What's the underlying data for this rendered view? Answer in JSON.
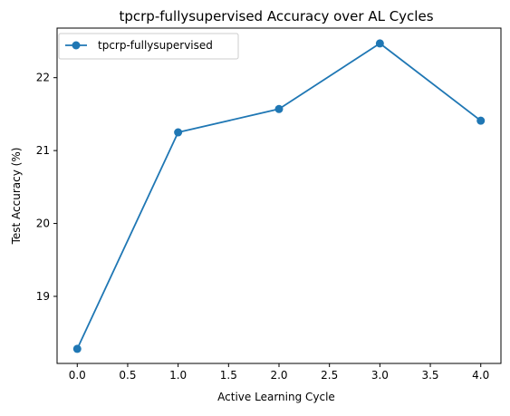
{
  "chart_data": {
    "type": "line",
    "title": "tpcrp-fullysupervised Accuracy over AL Cycles",
    "xlabel": "Active Learning Cycle",
    "ylabel": "Test Accuracy (%)",
    "x": [
      0,
      1,
      2,
      3,
      4
    ],
    "series": [
      {
        "name": "tpcrp-fullysupervised",
        "values": [
          18.28,
          21.25,
          21.57,
          22.47,
          21.41
        ],
        "color": "#1f77b4",
        "marker": "circle"
      }
    ],
    "xlim": [
      -0.2,
      4.2
    ],
    "ylim": [
      18.08,
      22.68
    ],
    "xticks": [
      0.0,
      0.5,
      1.0,
      1.5,
      2.0,
      2.5,
      3.0,
      3.5,
      4.0
    ],
    "xtick_labels": [
      "0.0",
      "0.5",
      "1.0",
      "1.5",
      "2.0",
      "2.5",
      "3.0",
      "3.5",
      "4.0"
    ],
    "yticks": [
      19,
      20,
      21,
      22
    ],
    "ytick_labels": [
      "19",
      "20",
      "21",
      "22"
    ],
    "grid": false,
    "legend_position": "upper-left"
  }
}
